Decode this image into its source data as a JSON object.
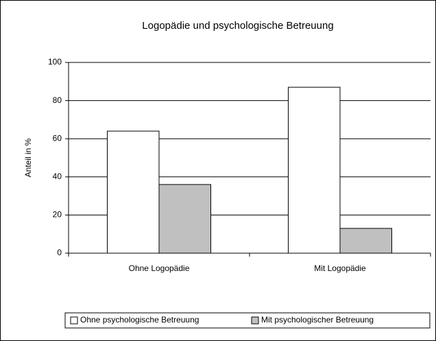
{
  "chart_data": {
    "type": "bar",
    "title": "Logopädie und psychologische Betreuung",
    "y_label": "Anteil in %",
    "categories": [
      "Ohne Logopädie",
      "Mit Logopädie"
    ],
    "series": [
      {
        "name": "Ohne psychologische Betreuung",
        "color": "#ffffff",
        "values": [
          64,
          87
        ]
      },
      {
        "name": "Mit psychologischer Betreuung",
        "color": "#c0c0c0",
        "values": [
          36,
          13
        ]
      }
    ],
    "ylim": [
      0,
      100
    ],
    "yticks": [
      0,
      20,
      40,
      60,
      80,
      100
    ],
    "grid": true,
    "legend": "bottom"
  }
}
